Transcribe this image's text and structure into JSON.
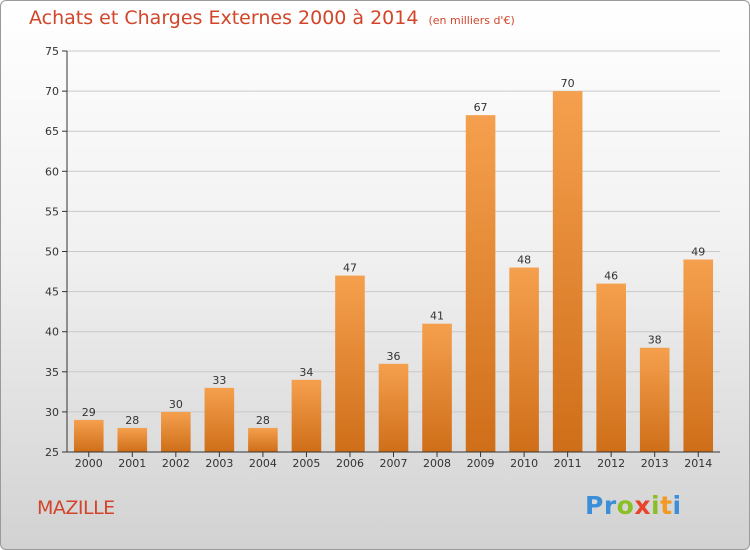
{
  "chart_data": {
    "type": "bar",
    "title": "Achats et Charges Externes 2000 à 2014",
    "subtitle": "(en milliers d'€)",
    "xlabel": "",
    "ylabel": "",
    "categories": [
      "2000",
      "2001",
      "2002",
      "2003",
      "2004",
      "2005",
      "2006",
      "2007",
      "2008",
      "2009",
      "2010",
      "2011",
      "2012",
      "2013",
      "2014"
    ],
    "values": [
      29,
      28,
      30,
      33,
      28,
      34,
      47,
      36,
      41,
      67,
      48,
      70,
      46,
      38,
      49
    ],
    "ylim": [
      25,
      75
    ],
    "yticks": [
      25,
      30,
      35,
      40,
      45,
      50,
      55,
      60,
      65,
      70,
      75
    ],
    "grid": true,
    "bar_color": "#f5a04e",
    "bar_color_dark": "#cf6e19"
  },
  "footer": {
    "commune": "MAZILLE",
    "logo_letters": [
      {
        "ch": "P",
        "color": "#3b8ed8"
      },
      {
        "ch": "r",
        "color": "#3b8ed8"
      },
      {
        "ch": "o",
        "color": "#8cbf26"
      },
      {
        "ch": "x",
        "color": "#e8432b"
      },
      {
        "ch": "i",
        "color": "#8cbf26"
      },
      {
        "ch": "t",
        "color": "#f39a24"
      },
      {
        "ch": "i",
        "color": "#3b8ed8"
      }
    ]
  },
  "colors": {
    "title": "#d2452a",
    "axis": "#333333",
    "grid": "#c9c9c9"
  }
}
